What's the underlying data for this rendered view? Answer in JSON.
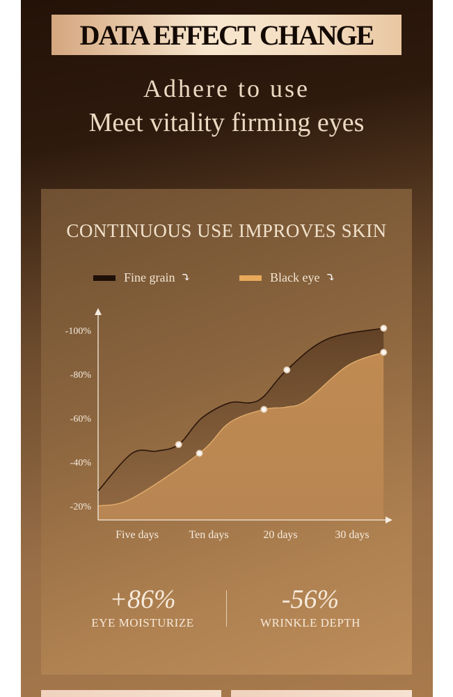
{
  "header": {
    "banner": "DATA EFFECT CHANGE",
    "line1": "Adhere to use",
    "line2": "Meet vitality firming eyes"
  },
  "card": {
    "title": "CONTINUOUS USE IMPROVES SKIN"
  },
  "legend": [
    {
      "label": "Fine grain",
      "color": "#1e0f08",
      "icon": "curved-arrow-down-icon"
    },
    {
      "label": "Black eye",
      "color": "#e8a95a",
      "icon": "curved-arrow-down-icon"
    }
  ],
  "chart_data": {
    "type": "area",
    "title": "CONTINUOUS USE IMPROVES SKIN",
    "categories": [
      "Five days",
      "Ten days",
      "20 days",
      "30 days"
    ],
    "y_ticks": [
      "-20%",
      "-40%",
      "-60%",
      "-80%",
      "-100%"
    ],
    "y_tick_values": [
      20,
      40,
      60,
      80,
      100
    ],
    "ylim": [
      14,
      108
    ],
    "xlim": [
      -0.55,
      3.5
    ],
    "grid": false,
    "legend_position": "top",
    "series": [
      {
        "name": "Fine grain",
        "color": "#2a150a",
        "x": [
          -0.54,
          -0.07,
          0.27,
          0.58,
          0.9,
          1.29,
          1.58,
          1.77,
          2.09,
          2.65,
          3.44
        ],
        "y": [
          27,
          44,
          45,
          48,
          60,
          67,
          67,
          70,
          82,
          96,
          101
        ],
        "markers": [
          [
            0.58,
            48
          ],
          [
            2.09,
            82
          ],
          [
            3.44,
            101
          ]
        ]
      },
      {
        "name": "Black eye",
        "color": "#e0ac6c",
        "x": [
          -0.54,
          -0.07,
          0.87,
          1.29,
          1.77,
          2.07,
          2.36,
          2.94,
          3.44
        ],
        "y": [
          20,
          23.5,
          44,
          58,
          64,
          65,
          68,
          84,
          90
        ],
        "markers": [
          [
            0.87,
            44
          ],
          [
            1.77,
            64
          ],
          [
            3.44,
            90
          ]
        ]
      }
    ]
  },
  "stats": [
    {
      "value": "+86%",
      "label": "EYE MOISTURIZE"
    },
    {
      "value": "-56%",
      "label": "WRINKLE DEPTH"
    }
  ]
}
